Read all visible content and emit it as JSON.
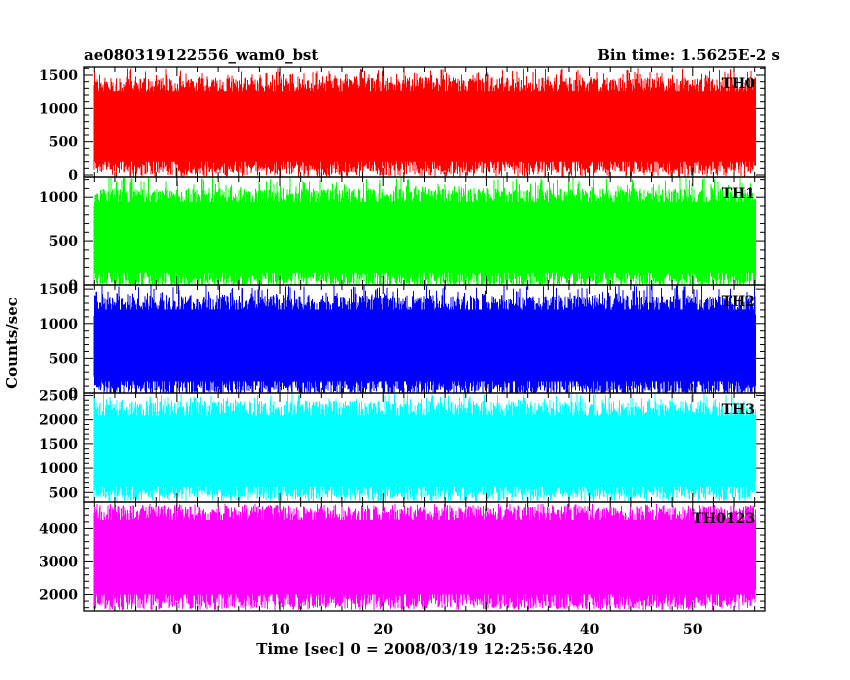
{
  "header": {
    "title": "ae080319122556_wam0_bst",
    "bin_time": "Bin time: 1.5625E-2 s"
  },
  "chart_data": {
    "type": "line",
    "title": "ae080319122556_wam0_bst",
    "xlabel": "Time [sec] 0 = 2008/03/19 12:25:56.420",
    "ylabel": "Counts/sec",
    "xlim": [
      -9,
      57
    ],
    "x_data_range": [
      -8.0,
      56.0
    ],
    "x_ticks": [
      0,
      10,
      20,
      30,
      40,
      50
    ],
    "x_tick_labels": [
      "0",
      "10",
      "20",
      "30",
      "40",
      "50"
    ],
    "bin_time_s": 0.015625,
    "grid": false,
    "panels": [
      {
        "name": "TH0",
        "color": "#ff0000",
        "ylim": [
          -30,
          1620
        ],
        "y_ticks": [
          0,
          500,
          1000,
          1500
        ],
        "y_tick_labels": [
          "0",
          "500",
          "1000",
          "1500"
        ],
        "mean": 760,
        "typical_low": 150,
        "typical_high": 1300,
        "min": 40,
        "max": 1600
      },
      {
        "name": "TH1",
        "color": "#00ff00",
        "ylim": [
          0,
          1230
        ],
        "y_ticks": [
          0,
          500,
          1000
        ],
        "y_tick_labels": [
          "0",
          "500",
          "1000"
        ],
        "mean": 580,
        "typical_low": 100,
        "typical_high": 980,
        "min": 20,
        "max": 1230
      },
      {
        "name": "TH2",
        "color": "#0000ff",
        "ylim": [
          0,
          1560
        ],
        "y_ticks": [
          0,
          500,
          1000,
          1500
        ],
        "y_tick_labels": [
          "0",
          "500",
          "1000",
          "1500"
        ],
        "mean": 700,
        "typical_low": 120,
        "typical_high": 1250,
        "min": 20,
        "max": 1560
      },
      {
        "name": "TH3",
        "color": "#00ffff",
        "ylim": [
          300,
          2550
        ],
        "y_ticks": [
          500,
          1000,
          1500,
          2000,
          2500
        ],
        "y_tick_labels": [
          "500",
          "1000",
          "1500",
          "2000",
          "2500"
        ],
        "mean": 1350,
        "typical_low": 550,
        "typical_high": 2150,
        "min": 400,
        "max": 2550
      },
      {
        "name": "TH0123",
        "color": "#ff00ff",
        "ylim": [
          1500,
          4800
        ],
        "y_ticks": [
          2000,
          3000,
          4000
        ],
        "y_tick_labels": [
          "2000",
          "3000",
          "4000"
        ],
        "mean": 3150,
        "typical_low": 1900,
        "typical_high": 4350,
        "min": 1550,
        "max": 4750
      }
    ]
  }
}
